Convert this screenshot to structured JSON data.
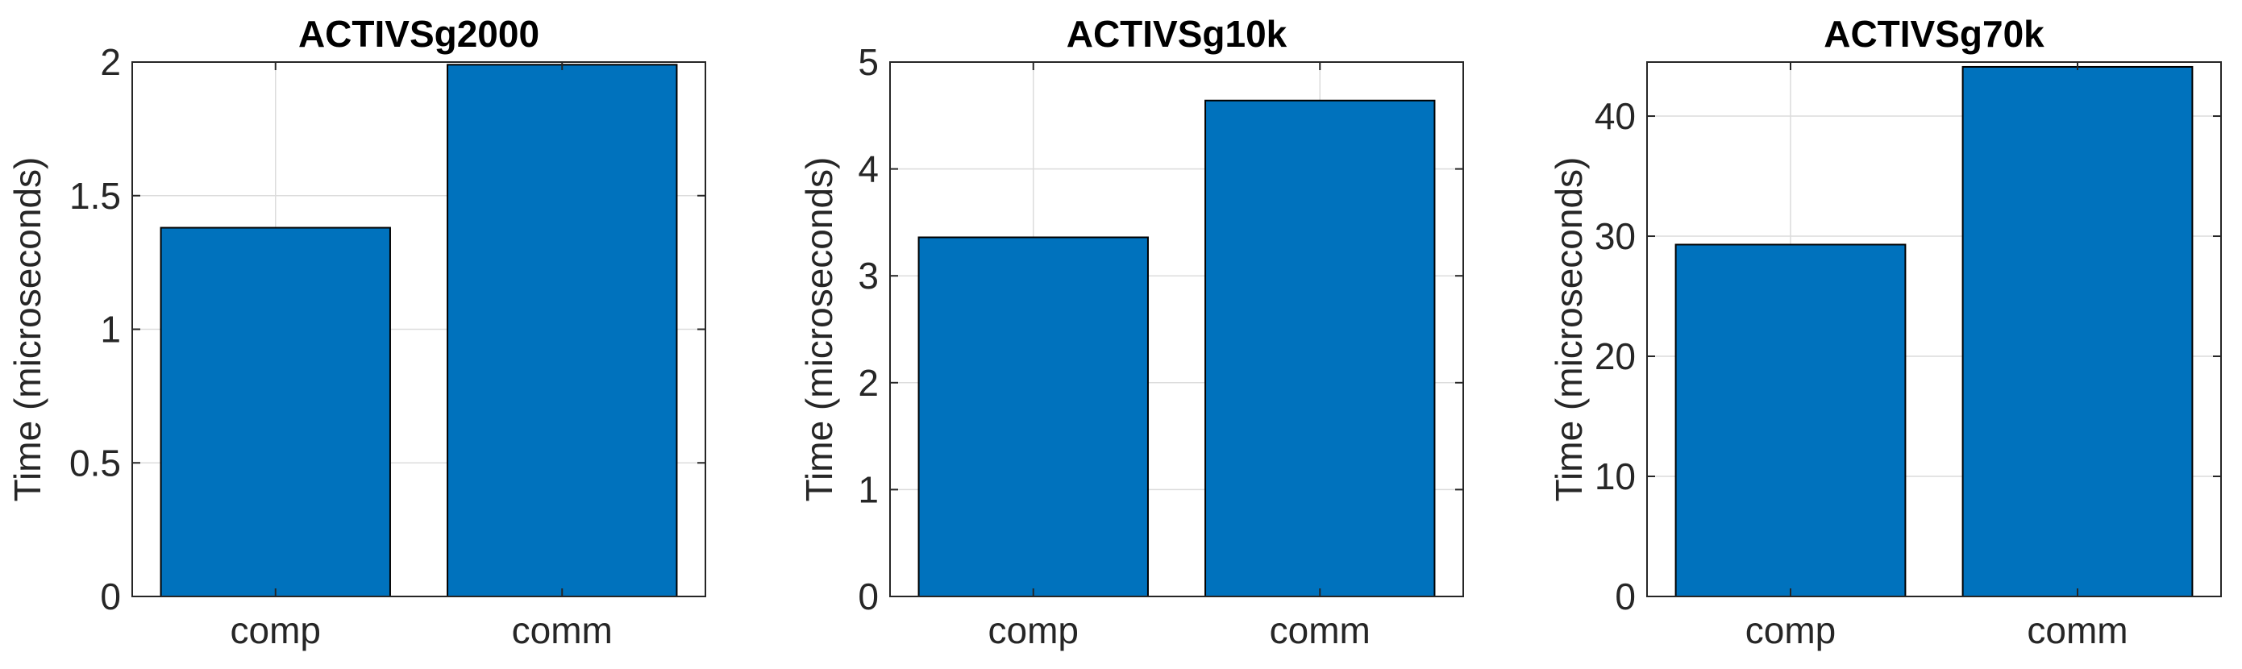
{
  "colors": {
    "bar_fill": "#0072bd",
    "bar_edge": "#000000",
    "grid": "#dcdcdc",
    "axis": "#262626"
  },
  "chart_data": [
    {
      "type": "bar",
      "title": "ACTIVSg2000",
      "categories": [
        "comp",
        "comm"
      ],
      "values": [
        1.38,
        1.99
      ],
      "xlabel": "",
      "ylabel": "Time (microseconds)",
      "ylim": [
        0,
        2
      ],
      "yticks": [
        0,
        0.5,
        1,
        1.5,
        2
      ],
      "yticklabels": [
        "0",
        "0.5",
        "1",
        "1.5",
        "2"
      ],
      "grid": true
    },
    {
      "type": "bar",
      "title": "ACTIVSg10k",
      "categories": [
        "comp",
        "comm"
      ],
      "values": [
        3.36,
        4.64
      ],
      "xlabel": "",
      "ylabel": "Time (microseconds)",
      "ylim": [
        0,
        5
      ],
      "yticks": [
        0,
        1,
        2,
        3,
        4,
        5
      ],
      "yticklabels": [
        "0",
        "1",
        "2",
        "3",
        "4",
        "5"
      ],
      "grid": true
    },
    {
      "type": "bar",
      "title": "ACTIVSg70k",
      "categories": [
        "comp",
        "comm"
      ],
      "values": [
        29.3,
        44.1
      ],
      "xlabel": "",
      "ylabel": "Time (microseconds)",
      "ylim": [
        0,
        44.5
      ],
      "yticks": [
        0,
        10,
        20,
        30,
        40
      ],
      "yticklabels": [
        "0",
        "10",
        "20",
        "30",
        "40"
      ],
      "grid": true
    }
  ]
}
